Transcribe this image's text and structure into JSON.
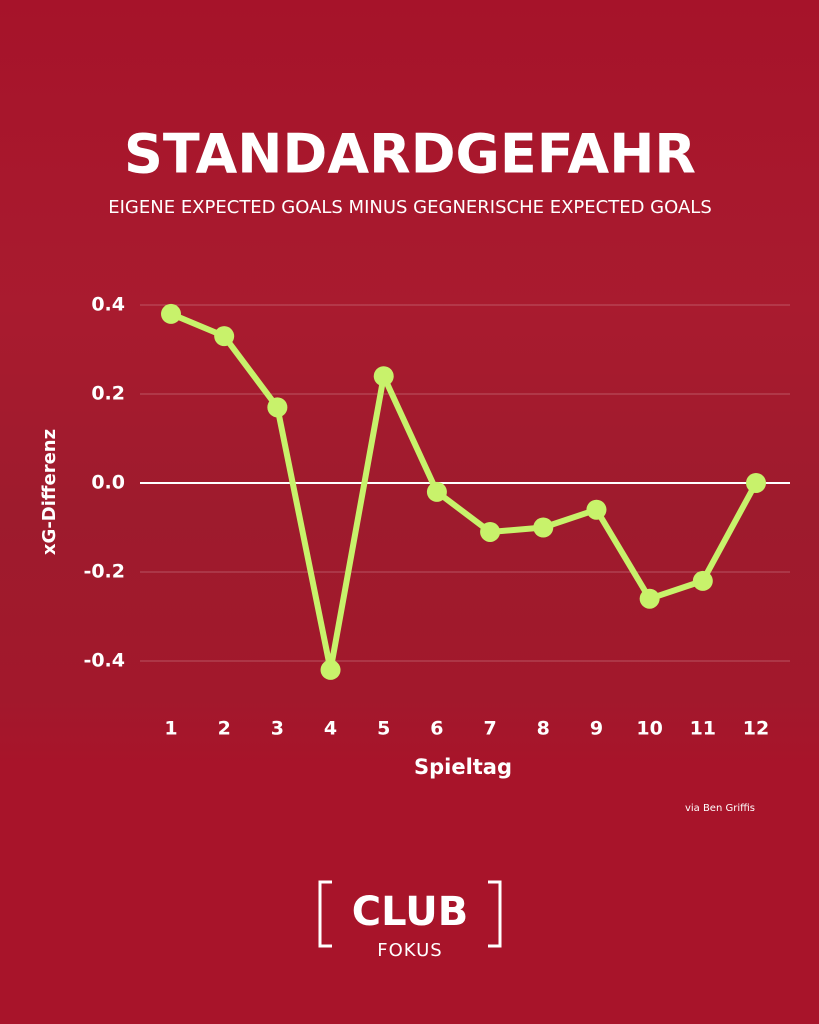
{
  "chart_data": {
    "type": "line",
    "title": "STANDARDGEFAHR",
    "subtitle": "EIGENE EXPECTED GOALS MINUS GEGNERISCHE EXPECTED GOALS",
    "x_label": "Spieltag",
    "y_label": "xG-Differenz",
    "source": "via Ben Griffis",
    "categories": [
      "1",
      "2",
      "3",
      "4",
      "5",
      "6",
      "7",
      "8",
      "9",
      "10",
      "11",
      "12"
    ],
    "values": [
      0.38,
      0.33,
      0.17,
      -0.42,
      0.24,
      -0.02,
      -0.11,
      -0.1,
      -0.06,
      -0.26,
      -0.22,
      0.0
    ],
    "color": "#c8f26b",
    "ylim": [
      -0.4,
      0.4
    ],
    "yticks": [
      0.4,
      0.2,
      {
        "value": 0,
        "label": "0.0"
      },
      -0.2,
      -0.4
    ],
    "grid": true
  },
  "logo": {
    "top": "CLUB",
    "bottom": "FOKUS"
  }
}
